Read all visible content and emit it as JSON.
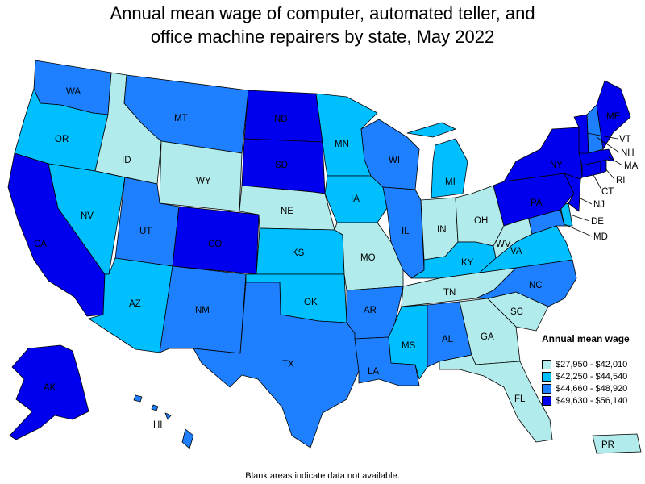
{
  "title": {
    "line1": "Annual mean wage of computer, automated teller, and",
    "line2": "office machine repairers by state, May 2022"
  },
  "colors": {
    "bin1": "#b2ebeb",
    "bin2": "#00bfff",
    "bin3": "#1e7fff",
    "bin4": "#0000ee"
  },
  "legend": {
    "title": "Annual mean wage",
    "items": [
      {
        "label": "$27,950 - $42,010",
        "bin": 1
      },
      {
        "label": "$42,250 - $44,540",
        "bin": 2
      },
      {
        "label": "$44,660 - $48,920",
        "bin": 3
      },
      {
        "label": "$49,630 - $56,140",
        "bin": 4
      }
    ]
  },
  "states": [
    {
      "code": "WA",
      "bin": 3
    },
    {
      "code": "OR",
      "bin": 2
    },
    {
      "code": "CA",
      "bin": 4
    },
    {
      "code": "ID",
      "bin": 1
    },
    {
      "code": "NV",
      "bin": 2
    },
    {
      "code": "MT",
      "bin": 3
    },
    {
      "code": "WY",
      "bin": 1
    },
    {
      "code": "UT",
      "bin": 3
    },
    {
      "code": "AZ",
      "bin": 2
    },
    {
      "code": "CO",
      "bin": 4
    },
    {
      "code": "NM",
      "bin": 3
    },
    {
      "code": "ND",
      "bin": 4
    },
    {
      "code": "SD",
      "bin": 4
    },
    {
      "code": "NE",
      "bin": 1
    },
    {
      "code": "KS",
      "bin": 2
    },
    {
      "code": "OK",
      "bin": 2
    },
    {
      "code": "TX",
      "bin": 3
    },
    {
      "code": "MN",
      "bin": 2
    },
    {
      "code": "IA",
      "bin": 2
    },
    {
      "code": "MO",
      "bin": 1
    },
    {
      "code": "AR",
      "bin": 3
    },
    {
      "code": "LA",
      "bin": 3
    },
    {
      "code": "WI",
      "bin": 3
    },
    {
      "code": "IL",
      "bin": 3
    },
    {
      "code": "MI",
      "bin": 2
    },
    {
      "code": "IN",
      "bin": 1
    },
    {
      "code": "OH",
      "bin": 1
    },
    {
      "code": "KY",
      "bin": 2
    },
    {
      "code": "TN",
      "bin": 1
    },
    {
      "code": "MS",
      "bin": 2
    },
    {
      "code": "AL",
      "bin": 3
    },
    {
      "code": "GA",
      "bin": 1
    },
    {
      "code": "FL",
      "bin": 1
    },
    {
      "code": "SC",
      "bin": 1
    },
    {
      "code": "NC",
      "bin": 3
    },
    {
      "code": "VA",
      "bin": 2
    },
    {
      "code": "WV",
      "bin": 1
    },
    {
      "code": "PA",
      "bin": 4
    },
    {
      "code": "NY",
      "bin": 4
    },
    {
      "code": "VT",
      "bin": 4
    },
    {
      "code": "NH",
      "bin": 3
    },
    {
      "code": "ME",
      "bin": 4
    },
    {
      "code": "MA",
      "bin": 4
    },
    {
      "code": "RI",
      "bin": 4
    },
    {
      "code": "CT",
      "bin": 4
    },
    {
      "code": "NJ",
      "bin": 4
    },
    {
      "code": "DE",
      "bin": 2
    },
    {
      "code": "MD",
      "bin": 3
    },
    {
      "code": "AK",
      "bin": 4
    },
    {
      "code": "HI",
      "bin": 3
    },
    {
      "code": "PR",
      "bin": 1
    }
  ],
  "footnote": "Blank areas indicate data not available."
}
